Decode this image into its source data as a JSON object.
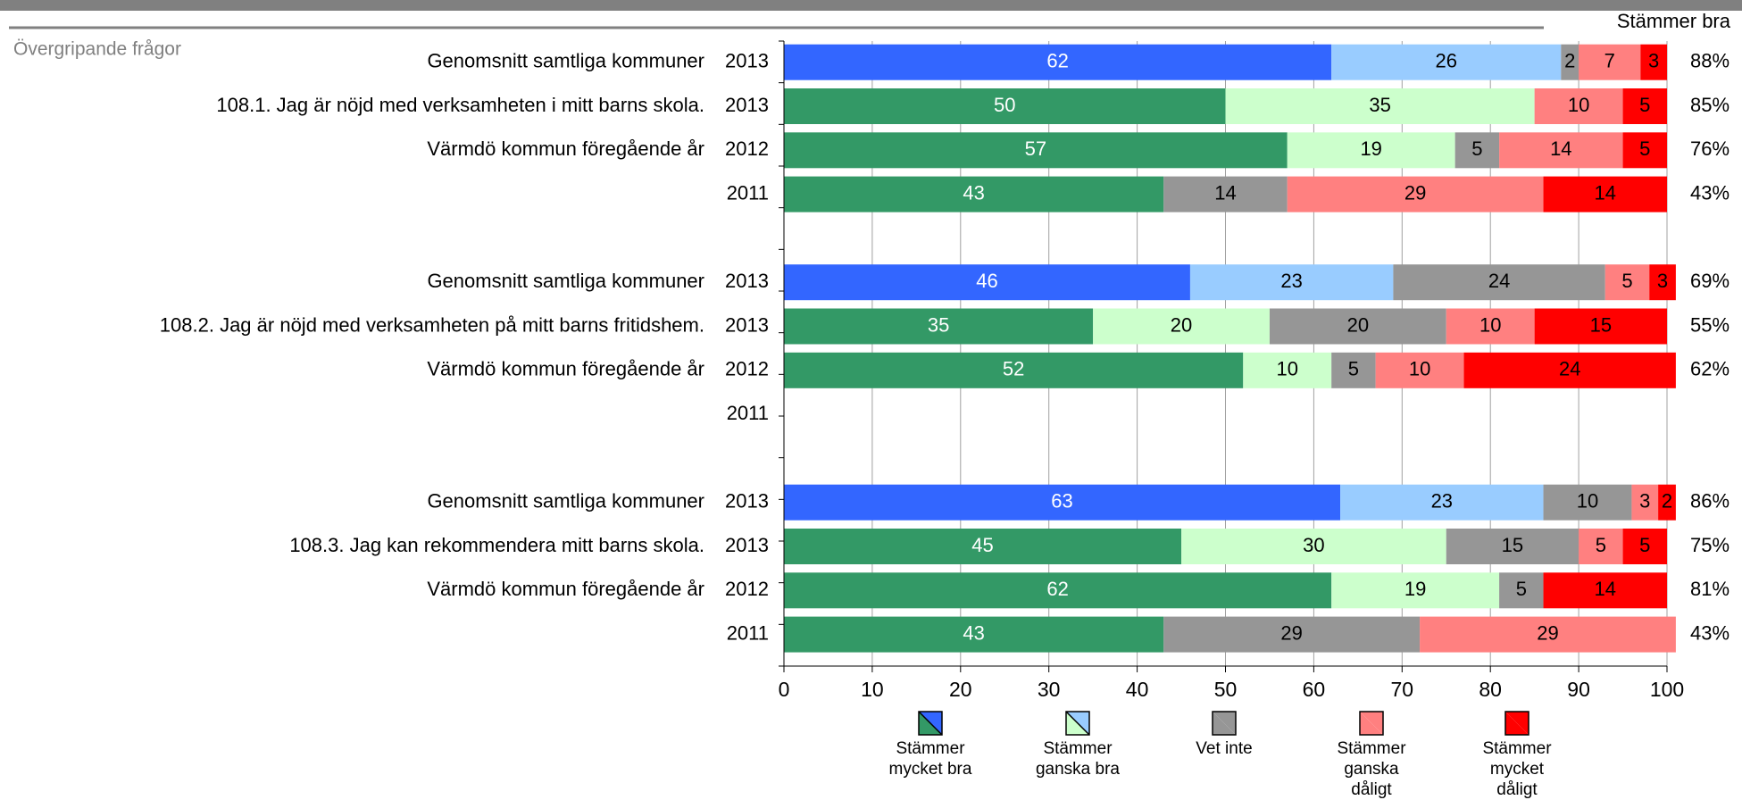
{
  "chart_data": {
    "type": "stacked_bar_horizontal",
    "section_title": "Övergripande frågor",
    "total_header": "Stämmer bra",
    "xlim": [
      0,
      100
    ],
    "xticks": [
      0,
      10,
      20,
      30,
      40,
      50,
      60,
      70,
      80,
      90,
      100
    ],
    "grid": true,
    "rows": [
      {
        "label": "Genomsnitt samtliga kommuner",
        "year": "2013",
        "total": 88,
        "total_label": "88%",
        "average": true
      },
      {
        "label": "108.1.  Jag är nöjd med verksamheten i mitt barns skola.",
        "year": "2013",
        "total": 85,
        "total_label": "85%",
        "average": false
      },
      {
        "label": "Värmdö kommun föregående år",
        "year": "2012",
        "total": 76,
        "total_label": "76%",
        "average": false
      },
      {
        "label": null,
        "year": "2011",
        "total": 43,
        "total_label": "43%",
        "average": false
      },
      {
        "label": "Genomsnitt samtliga kommuner",
        "year": "2013",
        "total": 69,
        "total_label": "69%",
        "average": true
      },
      {
        "label": "108.2.  Jag är nöjd med verksamheten på mitt barns fritidshem.",
        "year": "2013",
        "total": 55,
        "total_label": "55%",
        "average": false
      },
      {
        "label": "Värmdö kommun föregående år",
        "year": "2012",
        "total": 62,
        "total_label": "62%",
        "average": false
      },
      {
        "label": null,
        "year": "2011",
        "total": null,
        "total_label": null,
        "average": false
      },
      {
        "label": "Genomsnitt samtliga kommuner",
        "year": "2013",
        "total": 86,
        "total_label": "86%",
        "average": true
      },
      {
        "label": "108.3.  Jag kan rekommendera mitt barns skola.",
        "year": "2013",
        "total": 75,
        "total_label": "75%",
        "average": false
      },
      {
        "label": "Värmdö kommun föregående år",
        "year": "2012",
        "total": 81,
        "total_label": "81%",
        "average": false
      },
      {
        "label": null,
        "year": "2011",
        "total": 43,
        "total_label": "43%",
        "average": false
      }
    ],
    "series": [
      {
        "name": "Stämmer mycket bra",
        "color": "#339966",
        "avg_color": "#3366ff",
        "label_color": "#ffffff",
        "values": [
          62,
          50,
          57,
          43,
          46,
          35,
          52,
          null,
          63,
          45,
          62,
          43
        ]
      },
      {
        "name": "Stämmer ganska bra",
        "color": "#ccffcc",
        "avg_color": "#99ccff",
        "label_color": "#000000",
        "values": [
          26,
          35,
          19,
          null,
          23,
          20,
          10,
          null,
          23,
          30,
          19,
          null
        ]
      },
      {
        "name": "Vet inte",
        "color": "#969696",
        "avg_color": "#969696",
        "label_color": "#000000",
        "values": [
          2,
          null,
          5,
          14,
          24,
          20,
          5,
          null,
          10,
          15,
          5,
          29
        ]
      },
      {
        "name": "Stämmer ganska dåligt",
        "color": "#ff8080",
        "avg_color": "#ff8080",
        "label_color": "#000000",
        "values": [
          7,
          10,
          14,
          29,
          5,
          10,
          10,
          null,
          3,
          5,
          null,
          29
        ]
      },
      {
        "name": "Stämmer mycket dåligt",
        "color": "#ff0000",
        "avg_color": "#ff0000",
        "label_color": "#000000",
        "values": [
          3,
          5,
          5,
          14,
          3,
          15,
          24,
          null,
          2,
          5,
          14,
          null
        ]
      }
    ]
  }
}
